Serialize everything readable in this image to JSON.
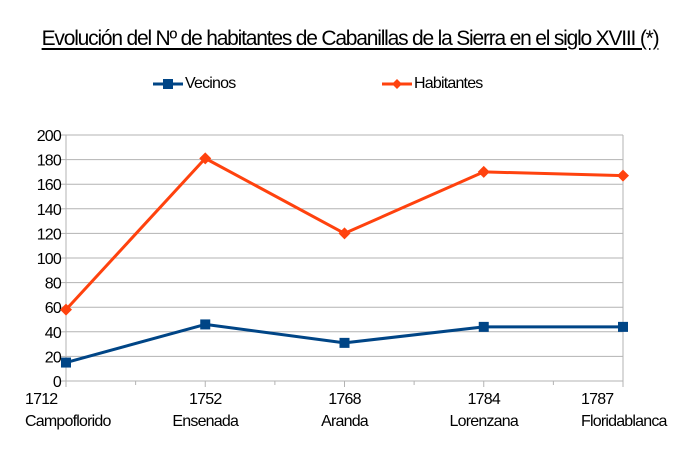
{
  "chart_data": {
    "type": "line",
    "title": "Evolución del Nº de habitantes de Cabanillas de la Sierra en el siglo XVIII (*)",
    "xlabel": "",
    "ylabel": "",
    "categories": [
      {
        "year": "1712",
        "name": "Campoflorido"
      },
      {
        "year": "1752",
        "name": "Ensenada"
      },
      {
        "year": "1768",
        "name": "Aranda"
      },
      {
        "year": "1784",
        "name": "Lorenzana"
      },
      {
        "year": "1787",
        "name": "Floridablanca"
      }
    ],
    "series": [
      {
        "name": "Vecinos",
        "color": "#004586",
        "marker": "square",
        "values": [
          15,
          46,
          31,
          44,
          44
        ]
      },
      {
        "name": "Habitantes",
        "color": "#ff420e",
        "marker": "diamond",
        "values": [
          58,
          181,
          120,
          170,
          167
        ]
      }
    ],
    "ylim": [
      0,
      200
    ],
    "yticks": [
      "0",
      "20",
      "40",
      "60",
      "80",
      "100",
      "120",
      "140",
      "160",
      "180",
      "200"
    ],
    "grid": true,
    "legend_position": "top"
  }
}
